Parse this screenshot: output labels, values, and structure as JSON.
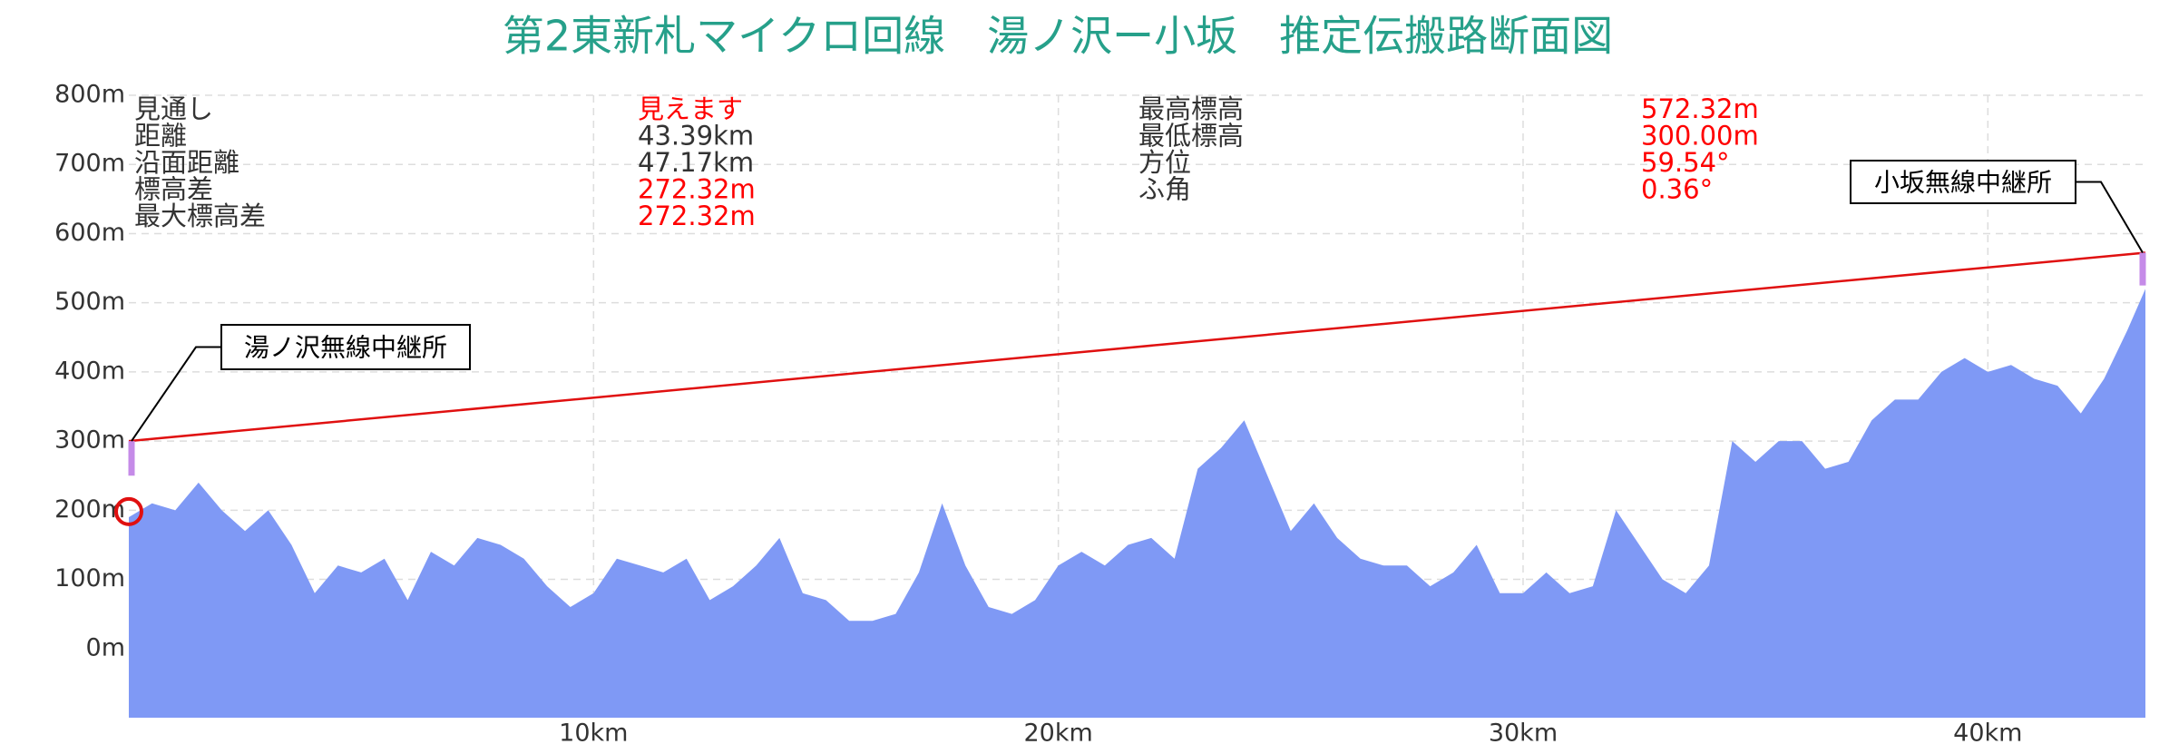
{
  "chart_data": {
    "type": "area",
    "title": "第2東新札マイクロ回線　湯ノ沢ー小坂　推定伝搬路断面図",
    "title_color": "#26a08a",
    "xlim": [
      0,
      43.39
    ],
    "ylim": [
      -100,
      800
    ],
    "xticks": [
      {
        "value": 10,
        "label": "10km"
      },
      {
        "value": 20,
        "label": "20km"
      },
      {
        "value": 30,
        "label": "30km"
      },
      {
        "value": 40,
        "label": "40km"
      }
    ],
    "yticks": [
      {
        "value": 0,
        "label": "0m"
      },
      {
        "value": 100,
        "label": "100m"
      },
      {
        "value": 200,
        "label": "200m"
      },
      {
        "value": 300,
        "label": "300m"
      },
      {
        "value": 400,
        "label": "400m"
      },
      {
        "value": 500,
        "label": "500m"
      },
      {
        "value": 600,
        "label": "600m"
      },
      {
        "value": 700,
        "label": "700m"
      },
      {
        "value": 800,
        "label": "800m"
      }
    ],
    "grid": true,
    "terrain": {
      "color": "#7f99f5",
      "x": [
        0,
        0.5,
        1,
        1.5,
        2,
        2.5,
        3,
        3.5,
        4,
        4.5,
        5,
        5.5,
        6,
        6.5,
        7,
        7.5,
        8,
        8.5,
        9,
        9.5,
        10,
        10.5,
        11,
        11.5,
        12,
        12.5,
        13,
        13.5,
        14,
        14.5,
        15,
        15.5,
        16,
        16.5,
        17,
        17.5,
        18,
        18.5,
        19,
        19.5,
        20,
        20.5,
        21,
        21.5,
        22,
        22.5,
        23,
        23.5,
        24,
        24.5,
        25,
        25.5,
        26,
        26.5,
        27,
        27.5,
        28,
        28.5,
        29,
        29.5,
        30,
        30.5,
        31,
        31.5,
        32,
        32.5,
        33,
        33.5,
        34,
        34.5,
        35,
        35.5,
        36,
        36.5,
        37,
        37.5,
        38,
        38.5,
        39,
        39.5,
        40,
        40.5,
        41,
        41.5,
        42,
        42.5,
        43,
        43.39
      ],
      "values": [
        190,
        210,
        200,
        240,
        200,
        170,
        200,
        150,
        80,
        120,
        110,
        130,
        70,
        140,
        120,
        160,
        150,
        130,
        90,
        60,
        80,
        130,
        120,
        110,
        130,
        70,
        90,
        120,
        160,
        80,
        70,
        40,
        40,
        50,
        110,
        210,
        120,
        60,
        50,
        70,
        120,
        140,
        120,
        150,
        160,
        130,
        260,
        290,
        330,
        250,
        170,
        210,
        160,
        130,
        120,
        120,
        90,
        110,
        150,
        80,
        80,
        110,
        80,
        90,
        200,
        150,
        100,
        80,
        120,
        300,
        270,
        300,
        300,
        260,
        270,
        330,
        360,
        360,
        400,
        420,
        400,
        410,
        390,
        380,
        340,
        390,
        460,
        520
      ]
    },
    "line_of_sight": {
      "color": "#e01010",
      "x": [
        0,
        43.39
      ],
      "values": [
        300,
        572.32
      ]
    },
    "stations": [
      {
        "name": "湯ノ沢無線中継所",
        "x": 0,
        "top": 300,
        "ground": 250
      },
      {
        "name": "小坂無線中継所",
        "x": 43.39,
        "top": 572.32,
        "ground": 525
      }
    ],
    "station_color": "#c58be8",
    "marker": {
      "x": 0,
      "value": 198,
      "color": "#e01010"
    },
    "info": [
      [
        {
          "label": "見通し",
          "value": "見えます",
          "color": "#ff0000"
        },
        {
          "label": "距離",
          "value": "43.39km",
          "color": "#333333"
        },
        {
          "label": "沿面距離",
          "value": "47.17km",
          "color": "#333333"
        },
        {
          "label": "標高差",
          "value": "272.32m",
          "color": "#ff0000"
        },
        {
          "label": "最大標高差",
          "value": "272.32m",
          "color": "#ff0000"
        }
      ],
      [
        {
          "label": "最高標高",
          "value": "572.32m",
          "color": "#ff0000"
        },
        {
          "label": "最低標高",
          "value": "300.00m",
          "color": "#ff0000"
        },
        {
          "label": "方位",
          "value": "59.54°",
          "color": "#ff0000"
        },
        {
          "label": "ふ角",
          "value": "0.36°",
          "color": "#ff0000"
        }
      ]
    ]
  }
}
